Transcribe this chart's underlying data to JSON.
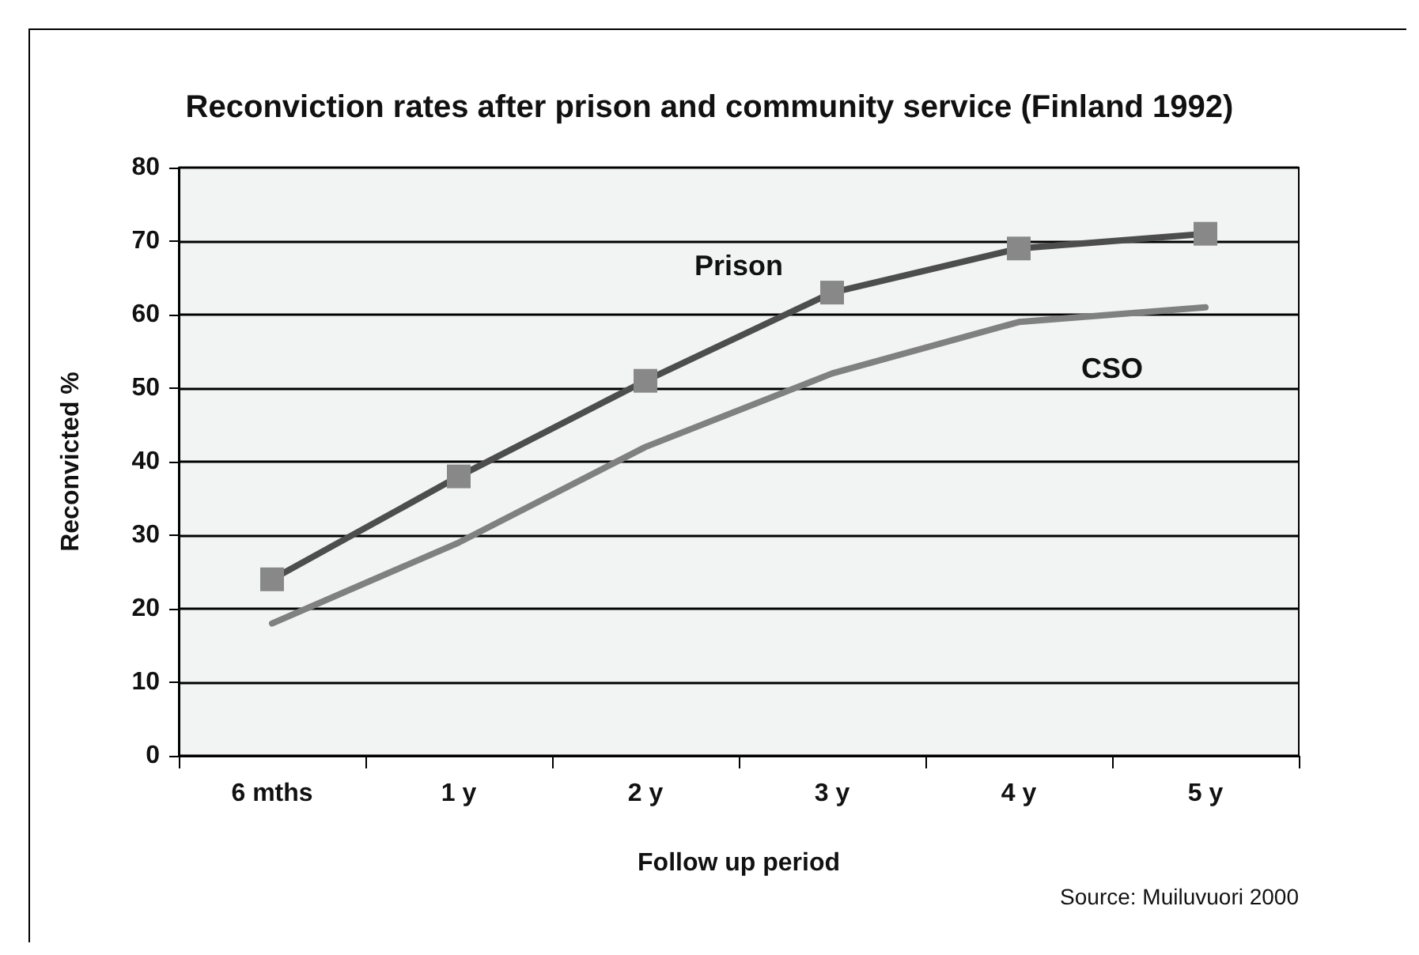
{
  "chart_data": {
    "type": "line",
    "title": "Reconviction rates after prison and community service (Finland 1992)",
    "xlabel": "Follow up period",
    "ylabel": "Reconvicted %",
    "annotations": [
      "Source: Muiluvuori 2000"
    ],
    "categories": [
      "6 mths",
      "1 y",
      "2 y",
      "3 y",
      "4 y",
      "5 y"
    ],
    "series": [
      {
        "name": "Prison",
        "color": "#4d4d4d",
        "marker": "square",
        "values": [
          24,
          38,
          51,
          63,
          69,
          71
        ]
      },
      {
        "name": "CSO",
        "color": "#808080",
        "marker": "none",
        "values": [
          18,
          29,
          42,
          52,
          59,
          61
        ]
      }
    ],
    "ylim": [
      0,
      80
    ],
    "yticks": [
      0,
      10,
      20,
      30,
      40,
      50,
      60,
      70,
      80
    ],
    "grid": "y",
    "legend": false,
    "line_style": "solid"
  }
}
